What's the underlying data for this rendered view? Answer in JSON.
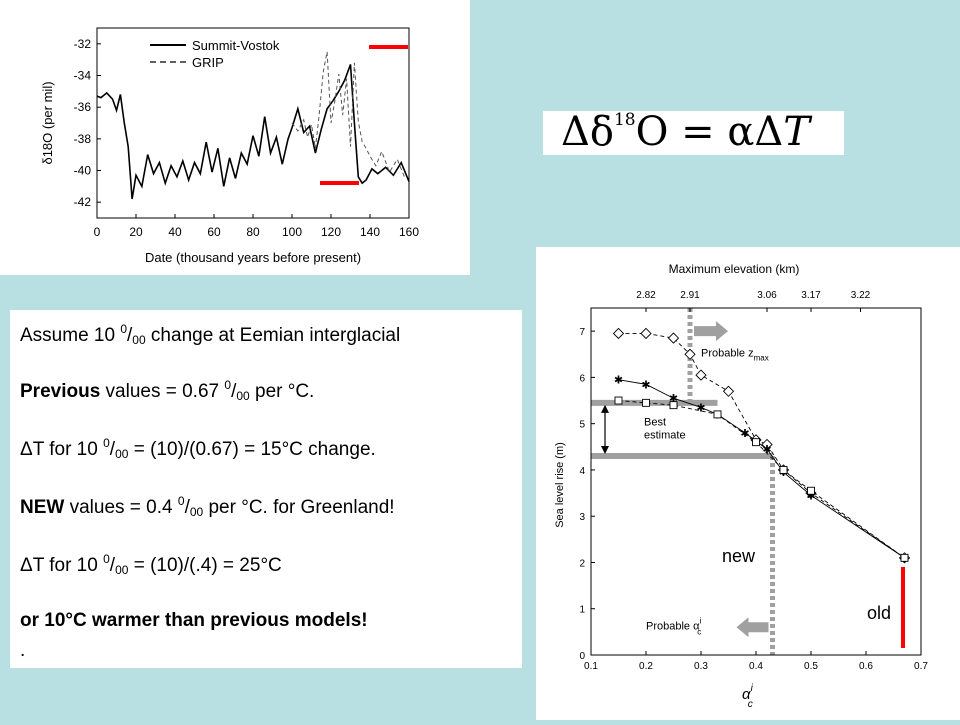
{
  "ice_chart": {
    "chart_data": {
      "type": "line",
      "xlabel": "Date (thousand years before present)",
      "ylabel": "δ18O (per mil)",
      "xlim": [
        0,
        160
      ],
      "ylim": [
        -43,
        -31
      ],
      "x_ticks": [
        "0",
        "20",
        "40",
        "60",
        "80",
        "100",
        "120",
        "140",
        "160"
      ],
      "y_ticks": [
        "-32",
        "-34",
        "-36",
        "-38",
        "-40",
        "-42"
      ],
      "series": [
        {
          "name": "Summit-Vostok",
          "style": "solid",
          "x": [
            0,
            2,
            5,
            8,
            10,
            12,
            14,
            16,
            18,
            20,
            23,
            26,
            29,
            32,
            35,
            38,
            41,
            44,
            47,
            50,
            53,
            56,
            59,
            62,
            65,
            68,
            71,
            74,
            77,
            80,
            83,
            86,
            89,
            92,
            95,
            98,
            100,
            103,
            106,
            109,
            112,
            115,
            118,
            121,
            124,
            127,
            130,
            132,
            134,
            136,
            138,
            141,
            144,
            148,
            152,
            156,
            160
          ],
          "y": [
            -35.3,
            -35.4,
            -35.1,
            -35.5,
            -36.2,
            -35.2,
            -37.0,
            -38.5,
            -41.8,
            -40.3,
            -41.0,
            -39.0,
            -40.2,
            -39.5,
            -40.8,
            -39.7,
            -40.4,
            -39.4,
            -40.6,
            -39.5,
            -40.2,
            -38.2,
            -40.1,
            -38.6,
            -41.0,
            -39.2,
            -40.5,
            -38.9,
            -39.6,
            -37.8,
            -39.1,
            -36.6,
            -38.9,
            -37.9,
            -39.6,
            -38.0,
            -37.3,
            -36.1,
            -37.6,
            -37.2,
            -38.9,
            -37.4,
            -36.1,
            -35.6,
            -35.0,
            -34.3,
            -33.3,
            -37.0,
            -40.4,
            -40.8,
            -40.6,
            -39.9,
            -40.2,
            -39.8,
            -40.3,
            -39.5,
            -40.7
          ]
        },
        {
          "name": "GRIP",
          "style": "dashed",
          "x": [
            100,
            103,
            106,
            108,
            110,
            112,
            114,
            116,
            118,
            120,
            122,
            124,
            126,
            128,
            130,
            132,
            134,
            136,
            138,
            140,
            143,
            146,
            150,
            154,
            158
          ],
          "y": [
            -37.0,
            -37.5,
            -36.8,
            -37.9,
            -37.1,
            -38.6,
            -36.4,
            -33.8,
            -32.5,
            -37.0,
            -35.6,
            -33.9,
            -36.5,
            -34.2,
            -38.5,
            -33.2,
            -36.9,
            -38.2,
            -38.6,
            -39.1,
            -39.7,
            -38.8,
            -40.1,
            -39.3,
            -40.5
          ]
        }
      ]
    }
  },
  "equation": {
    "delta": "Δδ",
    "superscript": "18",
    "rest": "O = α",
    "delta2": "Δ",
    "variable": "T"
  },
  "text_panel": {
    "line1": {
      "pre": "Assume 10 ",
      "sup": "0",
      "slash": "/",
      "sub": "00",
      "post": " change at Eemian interglacial"
    },
    "line2": {
      "bold": "Previous",
      "pre": " values = 0.67 ",
      "sup": "0",
      "slash": "/",
      "sub": "00",
      "post": " per °C."
    },
    "line3": {
      "pre": "ΔT for 10 ",
      "sup": "0",
      "slash": "/",
      "sub": "00",
      "post": " = (10)/(0.67) = 15°C change."
    },
    "line4": {
      "bold": "NEW",
      "pre": " values = 0.4 ",
      "sup": "0",
      "slash": "/",
      "sub": "00",
      "post": " per °C. for Greenland!"
    },
    "line5": {
      "pre": "ΔT for 10 ",
      "sup": "0",
      "slash": "/",
      "sub": "00",
      "post": " = (10)/(.4) = 25°C"
    },
    "line6": "or 10°C warmer than previous models!",
    "line7": "."
  },
  "sea_chart": {
    "chart_data": {
      "type": "line",
      "top_axis_label": "Maximum elevation (km)",
      "top_ticks": [
        "2.82",
        "2.91",
        "3.06",
        "3.17",
        "3.22"
      ],
      "ylabel": "Sea level rise (m)",
      "xlabel_main": "α",
      "xlabel_sup": "i",
      "xlabel_sub": "c",
      "xlim": [
        0.1,
        0.7
      ],
      "ylim": [
        0,
        7.5
      ],
      "x_ticks": [
        "0.1",
        "0.2",
        "0.3",
        "0.4",
        "0.5",
        "0.6",
        "0.7"
      ],
      "y_ticks": [
        "0",
        "1",
        "2",
        "3",
        "4",
        "5",
        "6",
        "7"
      ],
      "series": [
        {
          "marker": "diamond",
          "style": "dashed",
          "x": [
            0.15,
            0.2,
            0.25,
            0.28,
            0.3,
            0.35,
            0.4,
            0.42,
            0.45,
            0.5,
            0.67
          ],
          "y": [
            6.95,
            6.95,
            6.85,
            6.5,
            6.05,
            5.7,
            4.65,
            4.55,
            4.0,
            3.5,
            2.1
          ]
        },
        {
          "marker": "star",
          "style": "solid",
          "x": [
            0.15,
            0.2,
            0.25,
            0.3,
            0.33,
            0.38,
            0.42,
            0.45,
            0.5,
            0.67
          ],
          "y": [
            5.95,
            5.85,
            5.55,
            5.35,
            5.2,
            4.8,
            4.45,
            3.95,
            3.45,
            2.1
          ]
        },
        {
          "marker": "square",
          "style": "dashed",
          "x": [
            0.15,
            0.2,
            0.25,
            0.33,
            0.4,
            0.45,
            0.5,
            0.67
          ],
          "y": [
            5.5,
            5.45,
            5.4,
            5.2,
            4.6,
            4.0,
            3.55,
            2.1
          ]
        }
      ],
      "annotations": {
        "probable_z": "Probable z",
        "probable_z_sub": "max",
        "probable_alpha": "Probable α",
        "probable_alpha_sup": "i",
        "probable_alpha_sub": "c",
        "best_estimate_line1": "Best",
        "best_estimate_line2": "estimate"
      },
      "best_estimate_range": [
        4.3,
        5.45
      ],
      "probable_alpha_value": 0.43,
      "probable_z_alpha": 0.28
    }
  },
  "labels": {
    "new": "new",
    "old": "old"
  },
  "colors": {
    "background": "#b8dfe1",
    "highlight": "#ff0000",
    "grey_marker": "#a0a0a0"
  }
}
